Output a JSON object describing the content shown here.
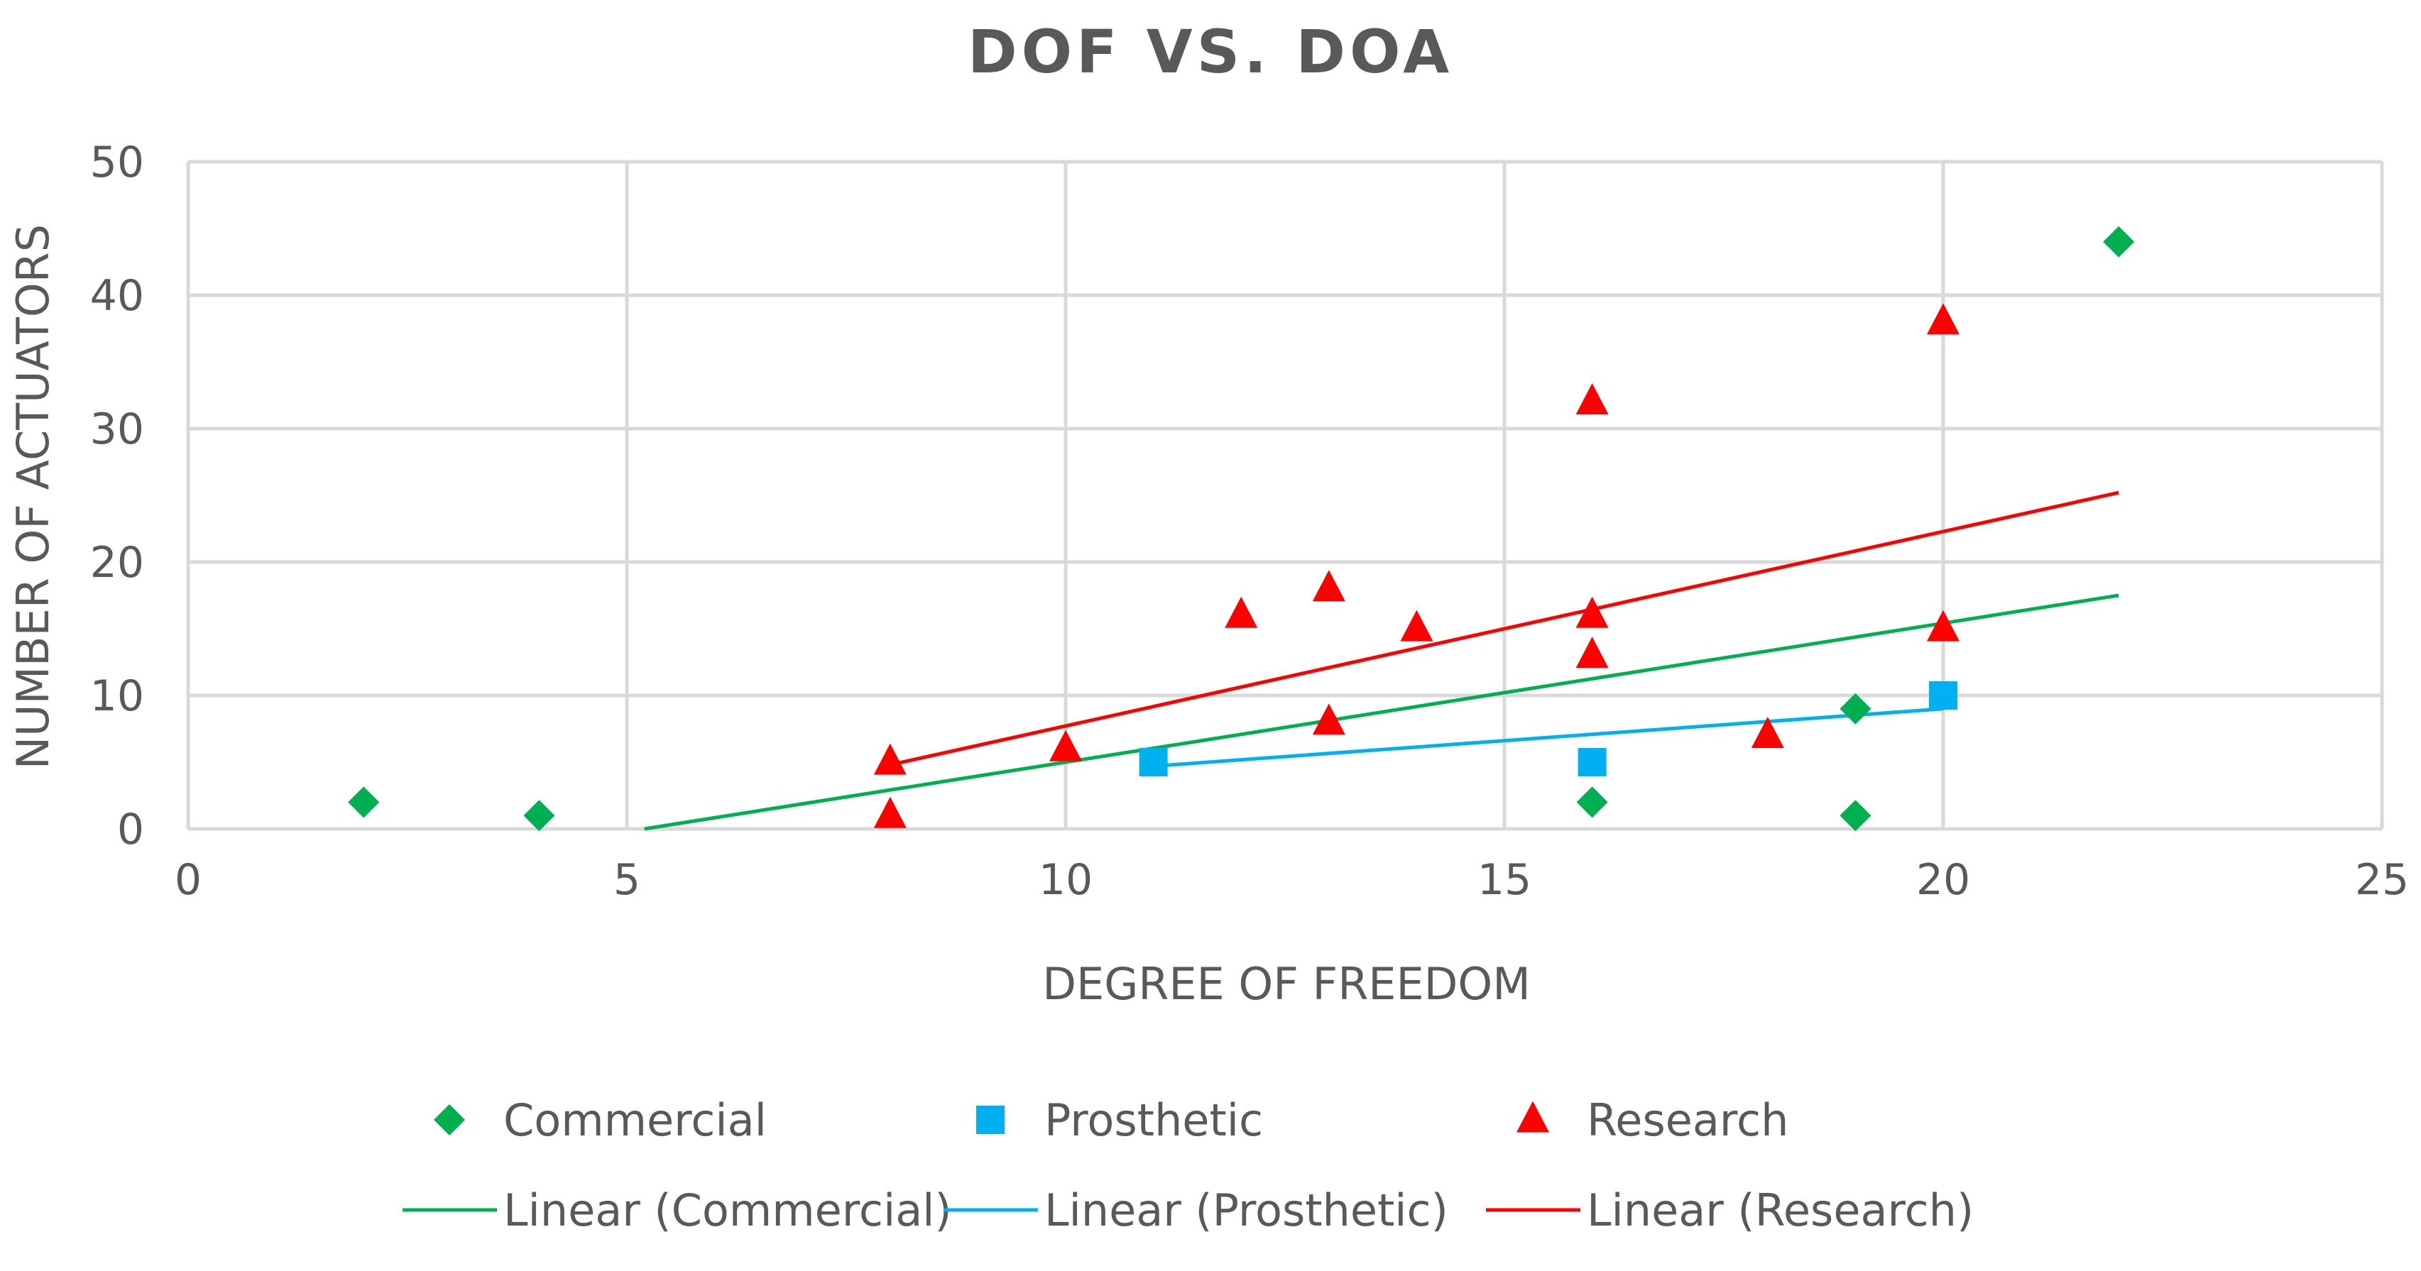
{
  "chart_data": {
    "type": "scatter",
    "title": "DOF VS. DOA",
    "xlabel": "DEGREE OF FREEDOM",
    "ylabel": "NUMBER OF ACTUATORS",
    "xlim": [
      0,
      25
    ],
    "ylim": [
      0,
      50
    ],
    "x_ticks": [
      0,
      5,
      10,
      15,
      20,
      25
    ],
    "y_ticks": [
      0,
      10,
      20,
      30,
      40,
      50
    ],
    "x_tick_labels": [
      "0",
      "5",
      "10",
      "15",
      "20",
      "25"
    ],
    "y_tick_labels": [
      "0",
      "10",
      "20",
      "30",
      "40",
      "50"
    ],
    "grid": true,
    "legend_position": "bottom",
    "series": [
      {
        "name": "Commercial",
        "marker": "diamond",
        "color": "#00B050",
        "points": [
          [
            2,
            2
          ],
          [
            4,
            1
          ],
          [
            16,
            2
          ],
          [
            19,
            9
          ],
          [
            19,
            1
          ],
          [
            22,
            44
          ]
        ]
      },
      {
        "name": "Prosthetic",
        "marker": "square",
        "color": "#00B0F0",
        "points": [
          [
            11,
            5
          ],
          [
            16,
            5
          ],
          [
            20,
            10
          ]
        ]
      },
      {
        "name": "Research",
        "marker": "triangle",
        "color": "#FF0000",
        "points": [
          [
            8,
            5
          ],
          [
            8,
            1
          ],
          [
            10,
            6
          ],
          [
            12,
            16
          ],
          [
            13,
            18
          ],
          [
            13,
            8
          ],
          [
            14,
            15
          ],
          [
            16,
            32
          ],
          [
            16,
            16
          ],
          [
            16,
            13
          ],
          [
            18,
            7
          ],
          [
            20,
            38
          ],
          [
            20,
            15
          ]
        ]
      }
    ],
    "trendlines": [
      {
        "name": "Linear (Commercial)",
        "color": "#00B050",
        "x": [
          5.2,
          22
        ],
        "y": [
          0,
          17.5
        ]
      },
      {
        "name": "Linear (Prosthetic)",
        "color": "#00B0F0",
        "x": [
          11,
          20
        ],
        "y": [
          4.7,
          9
        ]
      },
      {
        "name": "Linear (Research)",
        "color": "#FF0000",
        "x": [
          8,
          22
        ],
        "y": [
          4.8,
          25.2
        ]
      }
    ]
  }
}
